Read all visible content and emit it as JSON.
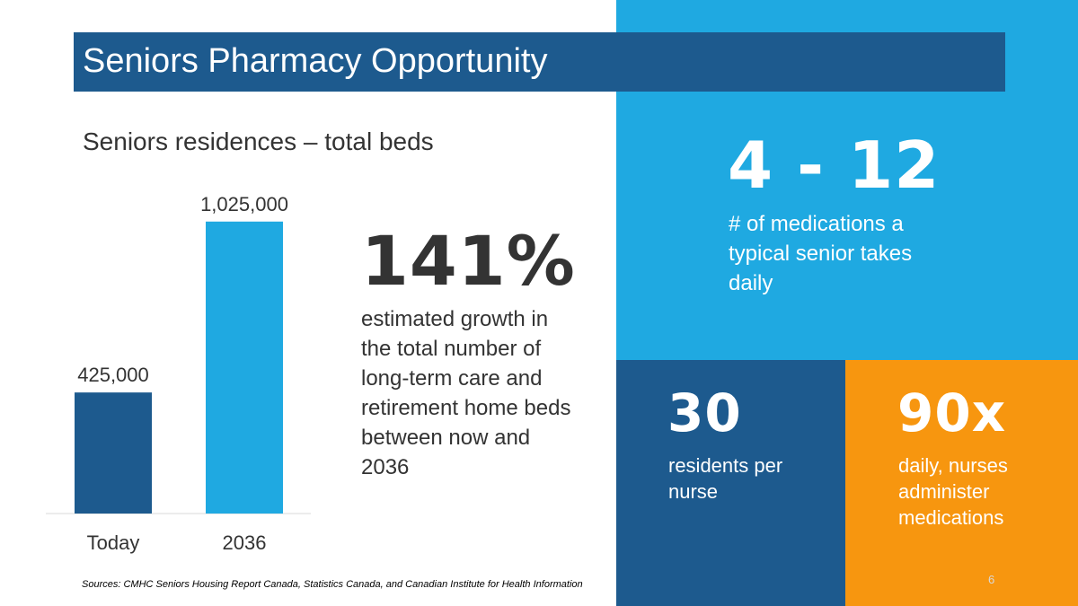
{
  "slide": {
    "title": "Seniors Pharmacy Opportunity",
    "subtitle": "Seniors residences – total beds",
    "sources": "Sources: CMHC Seniors Housing Report Canada, Statistics Canada, and Canadian Institute for Health Information",
    "page_number": "6"
  },
  "colors": {
    "dark_blue": "#1d5a8e",
    "light_blue": "#1fa9e1",
    "orange": "#f7960f",
    "text_dark": "#333333"
  },
  "stats": {
    "growth": {
      "value": "141%",
      "text": "estimated growth in the total number of long-term care and retirement home beds between now and 2036"
    },
    "medications": {
      "value": "4 - 12",
      "text": "# of medications a typical senior takes daily"
    },
    "residents": {
      "value": "30",
      "text": "residents per nurse"
    },
    "nurses": {
      "value": "90x",
      "text": "daily, nurses administer medications"
    }
  },
  "chart_data": {
    "type": "bar",
    "title": "Seniors residences – total beds",
    "categories": [
      "Today",
      "2036"
    ],
    "values": [
      425000,
      1025000
    ],
    "data_labels": [
      "425,000",
      "1,025,000"
    ],
    "bar_colors": [
      "#1d5a8e",
      "#1fa9e1"
    ],
    "ylim": [
      0,
      1100000
    ],
    "grid": false,
    "legend": "none"
  }
}
